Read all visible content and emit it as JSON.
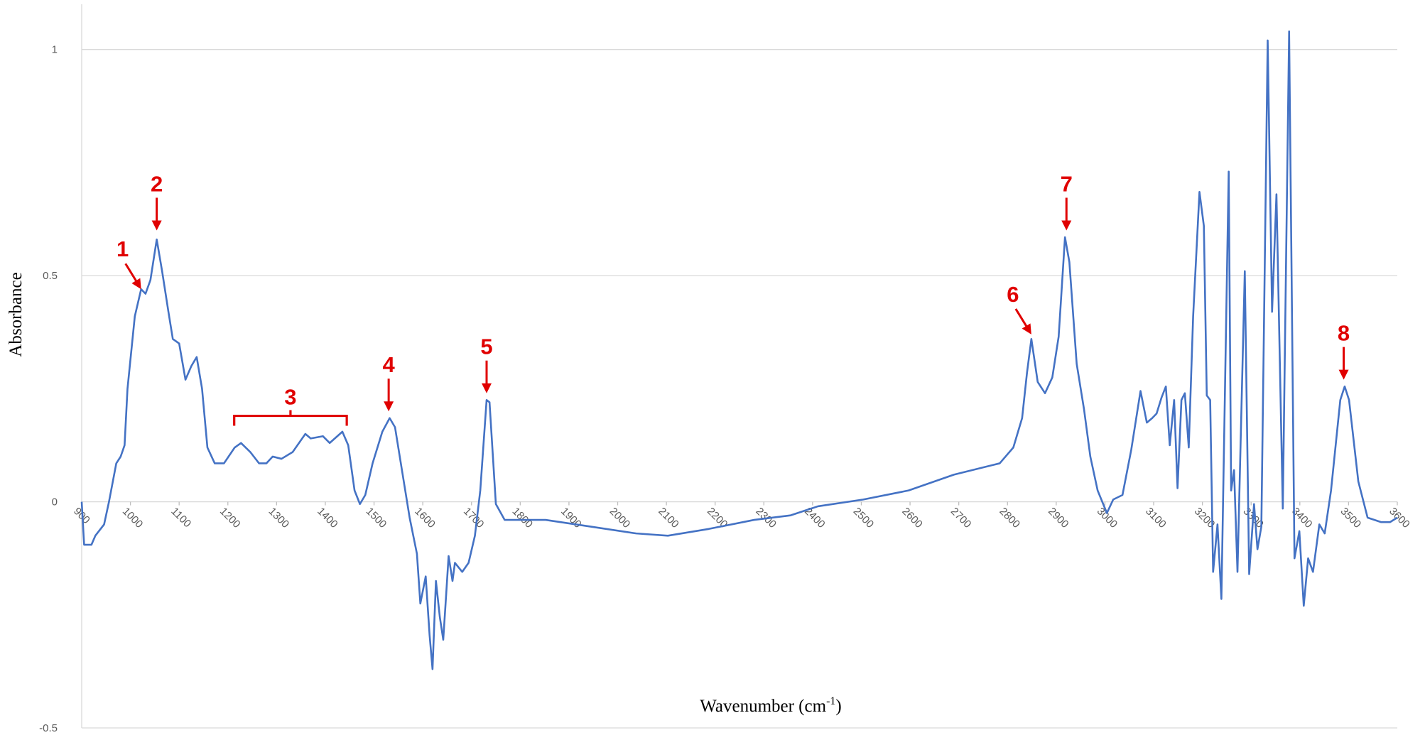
{
  "chart_data": {
    "type": "line",
    "x_label": "Wavenumber (cm",
    "x_label_sup": "-1",
    "x_label_end": ")",
    "y_label": "Absorbance",
    "color": "#4472c4",
    "grid": true,
    "xlim": [
      900,
      3600
    ],
    "ylim": [
      -0.5,
      1.1
    ],
    "xticks": [
      900,
      1000,
      1100,
      1200,
      1300,
      1400,
      1500,
      1600,
      1700,
      1800,
      1900,
      2000,
      2100,
      2200,
      2300,
      2400,
      2500,
      2600,
      2700,
      2800,
      2900,
      3000,
      3100,
      3200,
      3300,
      3400,
      3500,
      3600
    ],
    "yticks": [
      -0.5,
      0,
      0.5,
      1
    ],
    "x": [
      900,
      905,
      920,
      928,
      946,
      956,
      971,
      980,
      988,
      994,
      1009,
      1022,
      1031,
      1041,
      1054,
      1065,
      1078,
      1087,
      1100,
      1113,
      1125,
      1136,
      1147,
      1158,
      1173,
      1192,
      1214,
      1227,
      1246,
      1264,
      1279,
      1292,
      1310,
      1333,
      1359,
      1370,
      1395,
      1409,
      1435,
      1447,
      1460,
      1471,
      1482,
      1497,
      1517,
      1532,
      1543,
      1558,
      1573,
      1588,
      1595,
      1606,
      1614,
      1620,
      1627,
      1635,
      1642,
      1648,
      1653,
      1661,
      1666,
      1681,
      1694,
      1707,
      1718,
      1731,
      1737,
      1750,
      1768,
      1852,
      1945,
      2038,
      2103,
      2187,
      2280,
      2355,
      2411,
      2504,
      2597,
      2690,
      2784,
      2812,
      2830,
      2840,
      2849,
      2862,
      2877,
      2892,
      2905,
      2918,
      2927,
      2942,
      2957,
      2970,
      2985,
      3004,
      3017,
      3036,
      3054,
      3073,
      3086,
      3097,
      3106,
      3116,
      3125,
      3133,
      3142,
      3149,
      3157,
      3164,
      3172,
      3181,
      3194,
      3203,
      3209,
      3216,
      3222,
      3231,
      3239,
      3254,
      3259,
      3265,
      3272,
      3287,
      3296,
      3306,
      3313,
      3321,
      3334,
      3343,
      3352,
      3365,
      3378,
      3389,
      3399,
      3408,
      3417,
      3427,
      3440,
      3451,
      3464,
      3483,
      3492,
      3501,
      3520,
      3539,
      3567,
      3585,
      3600
    ],
    "values": [
      0,
      -0.095,
      -0.095,
      -0.075,
      -0.05,
      0.0,
      0.085,
      0.1,
      0.125,
      0.25,
      0.41,
      0.47,
      0.46,
      0.49,
      0.58,
      0.51,
      0.42,
      0.36,
      0.35,
      0.27,
      0.3,
      0.32,
      0.25,
      0.12,
      0.085,
      0.085,
      0.12,
      0.13,
      0.11,
      0.085,
      0.085,
      0.1,
      0.095,
      0.11,
      0.15,
      0.14,
      0.145,
      0.13,
      0.155,
      0.125,
      0.025,
      -0.005,
      0.015,
      0.085,
      0.155,
      0.185,
      0.165,
      0.065,
      -0.035,
      -0.115,
      -0.225,
      -0.165,
      -0.295,
      -0.37,
      -0.175,
      -0.255,
      -0.305,
      -0.205,
      -0.12,
      -0.175,
      -0.135,
      -0.155,
      -0.135,
      -0.075,
      0.025,
      0.225,
      0.22,
      -0.005,
      -0.04,
      -0.04,
      -0.055,
      -0.07,
      -0.075,
      -0.06,
      -0.04,
      -0.03,
      -0.01,
      0.005,
      0.025,
      0.06,
      0.085,
      0.12,
      0.185,
      0.285,
      0.36,
      0.265,
      0.24,
      0.275,
      0.365,
      0.585,
      0.53,
      0.305,
      0.205,
      0.1,
      0.025,
      -0.025,
      0.005,
      0.015,
      0.115,
      0.245,
      0.175,
      0.185,
      0.195,
      0.23,
      0.255,
      0.125,
      0.225,
      0.03,
      0.225,
      0.24,
      0.12,
      0.41,
      0.685,
      0.61,
      0.235,
      0.225,
      -0.155,
      -0.05,
      -0.215,
      0.73,
      0.025,
      0.07,
      -0.155,
      0.51,
      -0.16,
      -0.005,
      -0.105,
      -0.055,
      1.02,
      0.42,
      0.68,
      -0.015,
      1.04,
      -0.125,
      -0.065,
      -0.23,
      -0.125,
      -0.155,
      -0.05,
      -0.07,
      0.025,
      0.225,
      0.255,
      0.225,
      0.045,
      -0.035,
      -0.045,
      -0.045,
      -0.035
    ],
    "annotations": [
      {
        "text": "1",
        "x": 1022,
        "y": 0.47,
        "arrow": "diagonal"
      },
      {
        "text": "2",
        "x": 1054,
        "y": 0.6,
        "arrow": "down"
      },
      {
        "text": "3",
        "x": 1213,
        "x2": 1444,
        "y": 0.19,
        "arrow": "bracket"
      },
      {
        "text": "4",
        "x": 1530,
        "y": 0.2,
        "arrow": "down"
      },
      {
        "text": "5",
        "x": 1731,
        "y": 0.24,
        "arrow": "down"
      },
      {
        "text": "6",
        "x": 2849,
        "y": 0.37,
        "arrow": "diagonal"
      },
      {
        "text": "7",
        "x": 2921,
        "y": 0.6,
        "arrow": "down"
      },
      {
        "text": "8",
        "x": 3490,
        "y": 0.27,
        "arrow": "down"
      }
    ]
  }
}
